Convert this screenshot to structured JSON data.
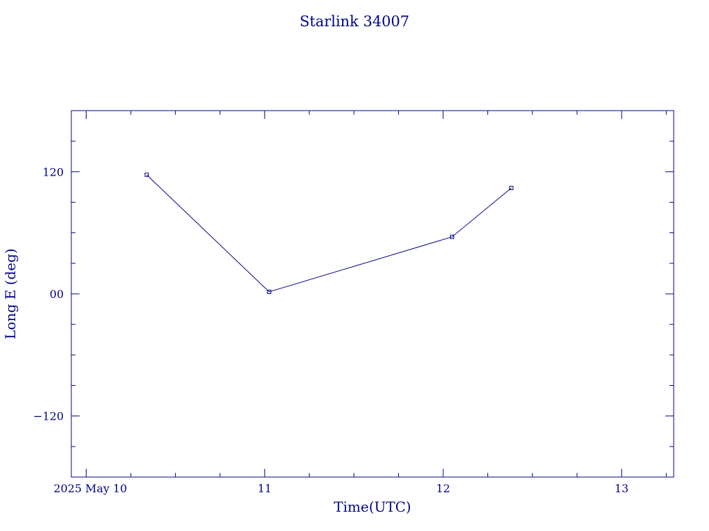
{
  "chart_data": {
    "type": "line",
    "title": "Starlink 34007",
    "xlabel": "Time(UTC)",
    "ylabel": "Long E (deg)",
    "x_axis": "date",
    "xlim": [
      "2025-05-09T22:00",
      "2025-05-13T07:00"
    ],
    "ylim": [
      -180,
      180
    ],
    "x_ticks": [
      {
        "value": "2025-05-10T00:00",
        "label": "2025 May 10"
      },
      {
        "value": "2025-05-11T00:00",
        "label": "11"
      },
      {
        "value": "2025-05-12T00:00",
        "label": "12"
      },
      {
        "value": "2025-05-13T00:00",
        "label": "13"
      }
    ],
    "y_ticks": [
      {
        "value": 120,
        "label": "120"
      },
      {
        "value": 0,
        "label": "00"
      },
      {
        "value": -120,
        "label": "−120"
      }
    ],
    "grid": false,
    "series": [
      {
        "points": [
          {
            "x": "2025-05-10T08:08",
            "y": 117
          },
          {
            "x": "2025-05-11T00:36",
            "y": 2
          },
          {
            "x": "2025-05-12T01:12",
            "y": 56
          },
          {
            "x": "2025-05-12T09:10",
            "y": 104
          }
        ]
      }
    ],
    "color": "#00008b"
  }
}
